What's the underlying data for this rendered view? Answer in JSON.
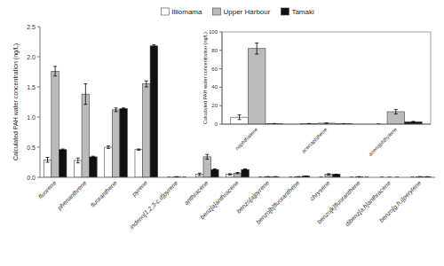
{
  "chart_data": [
    {
      "type": "bar",
      "categories": [
        "fluorene",
        "phenanthrene",
        "fluoranthene",
        "pyrene",
        "indeno[1,2,3-c,d]pyrene",
        "anthracene",
        "benz[a]anthracene",
        "benzo[a]pyrene",
        "benzo[b]fluoranthene",
        "chrysene",
        "benzo[k]fluoranthene",
        "dibenz[a,h]anthracene",
        "benzo[g,h,i]perylene"
      ],
      "series": [
        {
          "name": "Illiomama",
          "color": "#ffffff",
          "values": [
            0.29,
            0.28,
            0.5,
            0.46,
            0.0,
            0.05,
            0.05,
            0.0,
            0.0,
            0.0,
            0.0,
            0.0,
            0.0
          ],
          "errors": [
            0.04,
            0.04,
            0.02,
            0.01,
            0.0,
            0.02,
            0.01,
            0.0,
            0.0,
            0.0,
            0.0,
            0.0,
            0.0
          ]
        },
        {
          "name": "Upper Harbour",
          "color": "#bbbbbb",
          "values": [
            1.76,
            1.38,
            1.12,
            1.55,
            0.01,
            0.34,
            0.07,
            0.01,
            0.01,
            0.05,
            0.01,
            0.0,
            0.01
          ],
          "errors": [
            0.08,
            0.17,
            0.03,
            0.05,
            0.0,
            0.04,
            0.01,
            0.0,
            0.0,
            0.01,
            0.0,
            0.0,
            0.0
          ]
        },
        {
          "name": "Tamaki",
          "color": "#111111",
          "values": [
            0.46,
            0.34,
            1.14,
            2.18,
            0.0,
            0.13,
            0.13,
            0.01,
            0.02,
            0.05,
            0.0,
            0.0,
            0.01
          ],
          "errors": [
            0.01,
            0.01,
            0.01,
            0.02,
            0.0,
            0.01,
            0.01,
            0.0,
            0.0,
            0.0,
            0.0,
            0.0,
            0.0
          ]
        }
      ],
      "ylabel": "Calculated PAH water concentration (ng/L)",
      "ylim": [
        0,
        2.5
      ],
      "yticks": [
        {
          "value": 0,
          "label": "0.0"
        },
        0.5,
        {
          "value": 1,
          "label": "1.0"
        },
        1.5,
        {
          "value": 2,
          "label": "2.0"
        },
        2.5
      ],
      "legend": "top"
    },
    {
      "type": "bar",
      "categories": [
        "naphthalene",
        "acenaphthene",
        "acenaphthylene"
      ],
      "series": [
        {
          "color": "#ffffff",
          "values": [
            7.5,
            0.5,
            0.0
          ],
          "errors": [
            2.5,
            0.2,
            0.0
          ]
        },
        {
          "color": "#bbbbbb",
          "values": [
            82.0,
            1.0,
            13.5
          ],
          "errors": [
            6.0,
            0.3,
            2.5
          ]
        },
        {
          "color": "#111111",
          "values": [
            0.5,
            0.5,
            2.5
          ],
          "errors": [
            0.2,
            0.1,
            0.5
          ]
        }
      ],
      "ylabel": "Calculated PAH water concentration (ng/L)",
      "ylim": [
        0,
        100
      ],
      "yticks": [
        0,
        20,
        40,
        60,
        80,
        100
      ]
    }
  ]
}
